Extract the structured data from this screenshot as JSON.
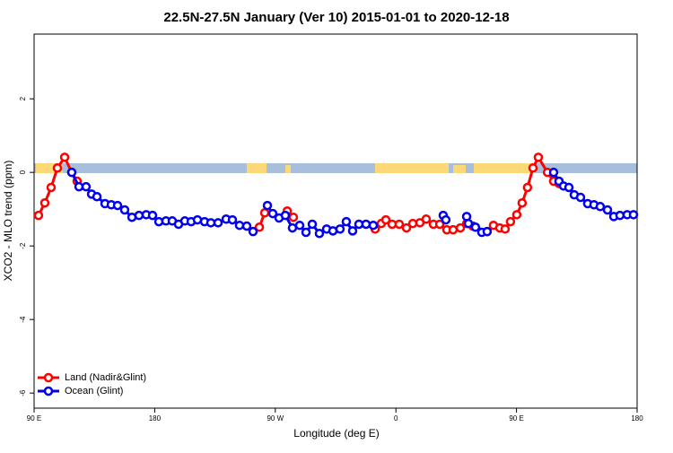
{
  "chart_data": {
    "type": "line",
    "title": "22.5N-27.5N January (Ver 10)   2015-01-01 to 2020-12-18",
    "xlabel": "Longitude (deg E)",
    "ylabel": "XCO2 - MLO trend (ppm)",
    "xlim": [
      90,
      540
    ],
    "ylim": [
      -6.41,
      3.76
    ],
    "xticks": [
      {
        "value": 90,
        "label": "90 E"
      },
      180,
      {
        "value": 270,
        "label": "90 W"
      },
      {
        "value": 360,
        "label": "0"
      },
      {
        "value": 450,
        "label": "90 E"
      },
      {
        "value": 540,
        "label": "180"
      }
    ],
    "yticks": [
      -6,
      -4,
      -2,
      0,
      2
    ],
    "legend": "bottom-left",
    "series": [
      {
        "name": "Land (Nadir&Glint)",
        "color": "#ff0000",
        "x": [
          93.3,
          98.0,
          102.7,
          107.4,
          112.8,
          118.1,
          122.1,
          null,
          258.1,
          262.1,
          null,
          278.9,
          283.5,
          null,
          344.5,
          349.1,
          352.5,
          357.2,
          362.5,
          367.9,
          372.6,
          377.9,
          382.6,
          388.0,
          392.7,
          398.0,
          402.7,
          408.1,
          412.8,
          417.4,
          428.1,
          432.8,
          437.5,
          441.5,
          445.5,
          450.2,
          454.2,
          458.2,
          462.3,
          466.3,
          473.1,
          477.7,
          481.7
        ],
        "values": [
          -1.17,
          -0.83,
          -0.41,
          0.12,
          0.41,
          0,
          -0.24,
          null,
          -1.49,
          -1.1,
          null,
          -1.05,
          -1.22,
          null,
          -1.54,
          -1.39,
          -1.29,
          -1.41,
          -1.41,
          -1.51,
          -1.39,
          -1.37,
          -1.27,
          -1.41,
          -1.41,
          -1.56,
          -1.56,
          -1.51,
          -1.39,
          -1.46,
          -1.61,
          -1.44,
          -1.51,
          -1.54,
          -1.34,
          -1.15,
          -0.83,
          -0.41,
          0.12,
          0.41,
          0,
          -0.24,
          -0.3
        ]
      },
      {
        "name": "Ocean (Glint)",
        "color": "#0000ee",
        "x": [
          118.1,
          123.5,
          128.8,
          132.9,
          136.9,
          142.9,
          147.6,
          152.3,
          157.6,
          163.0,
          168.3,
          173.7,
          178.4,
          183.1,
          188.4,
          193.1,
          197.8,
          202.5,
          207.2,
          211.9,
          217.2,
          221.9,
          227.3,
          233.3,
          238.0,
          243.3,
          248.7,
          253.4,
          null,
          264.1,
          268.1,
          272.8,
          277.5,
          282.8,
          288.2,
          292.9,
          297.6,
          302.9,
          308.3,
          313.0,
          318.3,
          323.0,
          327.7,
          332.4,
          337.7,
          343.1,
          null,
          395.3,
          397.3,
          null,
          412.8,
          414.1,
          419.4,
          424.1,
          428.1,
          null,
          477.7,
          481.7,
          485.1,
          489.1,
          493.1,
          497.8,
          503.1,
          507.8,
          512.5,
          517.9,
          522.6,
          527.2,
          532.6,
          537.3
        ],
        "values": [
          0,
          -0.39,
          -0.39,
          -0.59,
          -0.66,
          -0.85,
          -0.88,
          -0.9,
          -1.02,
          -1.22,
          -1.17,
          -1.15,
          -1.17,
          -1.34,
          -1.32,
          -1.32,
          -1.41,
          -1.32,
          -1.34,
          -1.29,
          -1.34,
          -1.37,
          -1.37,
          -1.27,
          -1.29,
          -1.44,
          -1.46,
          -1.61,
          null,
          -0.9,
          -1.12,
          -1.24,
          -1.17,
          -1.51,
          -1.44,
          -1.63,
          -1.41,
          -1.66,
          -1.54,
          -1.59,
          -1.54,
          -1.34,
          -1.59,
          -1.41,
          -1.41,
          -1.44,
          null,
          -1.17,
          -1.29,
          null,
          -1.2,
          -1.39,
          -1.49,
          -1.63,
          -1.61,
          null,
          0,
          -0.24,
          -0.37,
          -0.41,
          -0.61,
          -0.68,
          -0.85,
          -0.88,
          -0.93,
          -1.02,
          -1.2,
          -1.17,
          -1.15,
          -1.15
        ]
      }
    ]
  }
}
